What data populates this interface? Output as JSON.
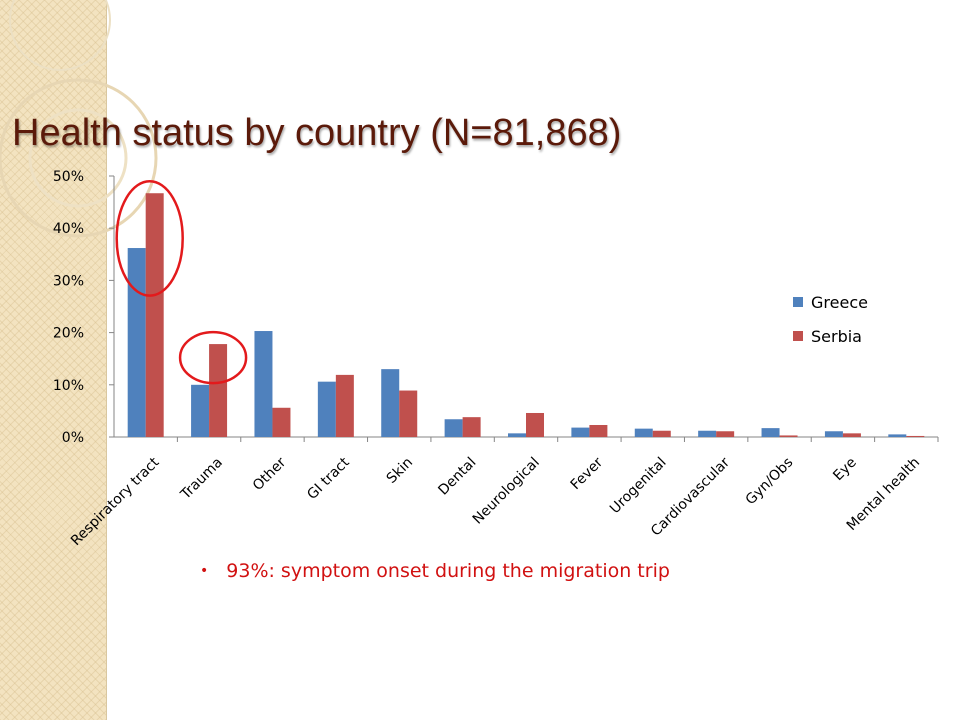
{
  "slide": {
    "title": "Health status by country (N=81,868)",
    "bullet": "93%: symptom onset during the migration trip"
  },
  "colors": {
    "greece": "#4f81bd",
    "serbia": "#c0504d",
    "highlight": "#e31a1c",
    "band": "#f3e3c0"
  },
  "chart_data": {
    "type": "bar",
    "title": "",
    "xlabel": "",
    "ylabel": "",
    "categories": [
      "Respiratory tract",
      "Trauma",
      "Other",
      "GI tract",
      "Skin",
      "Dental",
      "Neurological",
      "Fever",
      "Urogenital",
      "Cardiovascular",
      "Gyn/Obs",
      "Eye",
      "Mental health"
    ],
    "series": [
      {
        "name": "Greece",
        "color": "#4f81bd",
        "values": [
          36.2,
          10.0,
          20.3,
          10.6,
          13.0,
          3.4,
          0.7,
          1.8,
          1.6,
          1.2,
          1.7,
          1.1,
          0.5
        ]
      },
      {
        "name": "Serbia",
        "color": "#c0504d",
        "values": [
          46.7,
          17.8,
          5.6,
          11.9,
          8.9,
          3.8,
          4.6,
          2.3,
          1.2,
          1.1,
          0.3,
          0.7,
          0.2
        ]
      }
    ],
    "ylim": [
      0,
      50
    ],
    "yticks": [
      "0%",
      "10%",
      "20%",
      "30%",
      "40%",
      "50%"
    ],
    "grid": false,
    "legend": "right",
    "highlighted_categories": [
      "Respiratory tract",
      "Trauma"
    ]
  }
}
